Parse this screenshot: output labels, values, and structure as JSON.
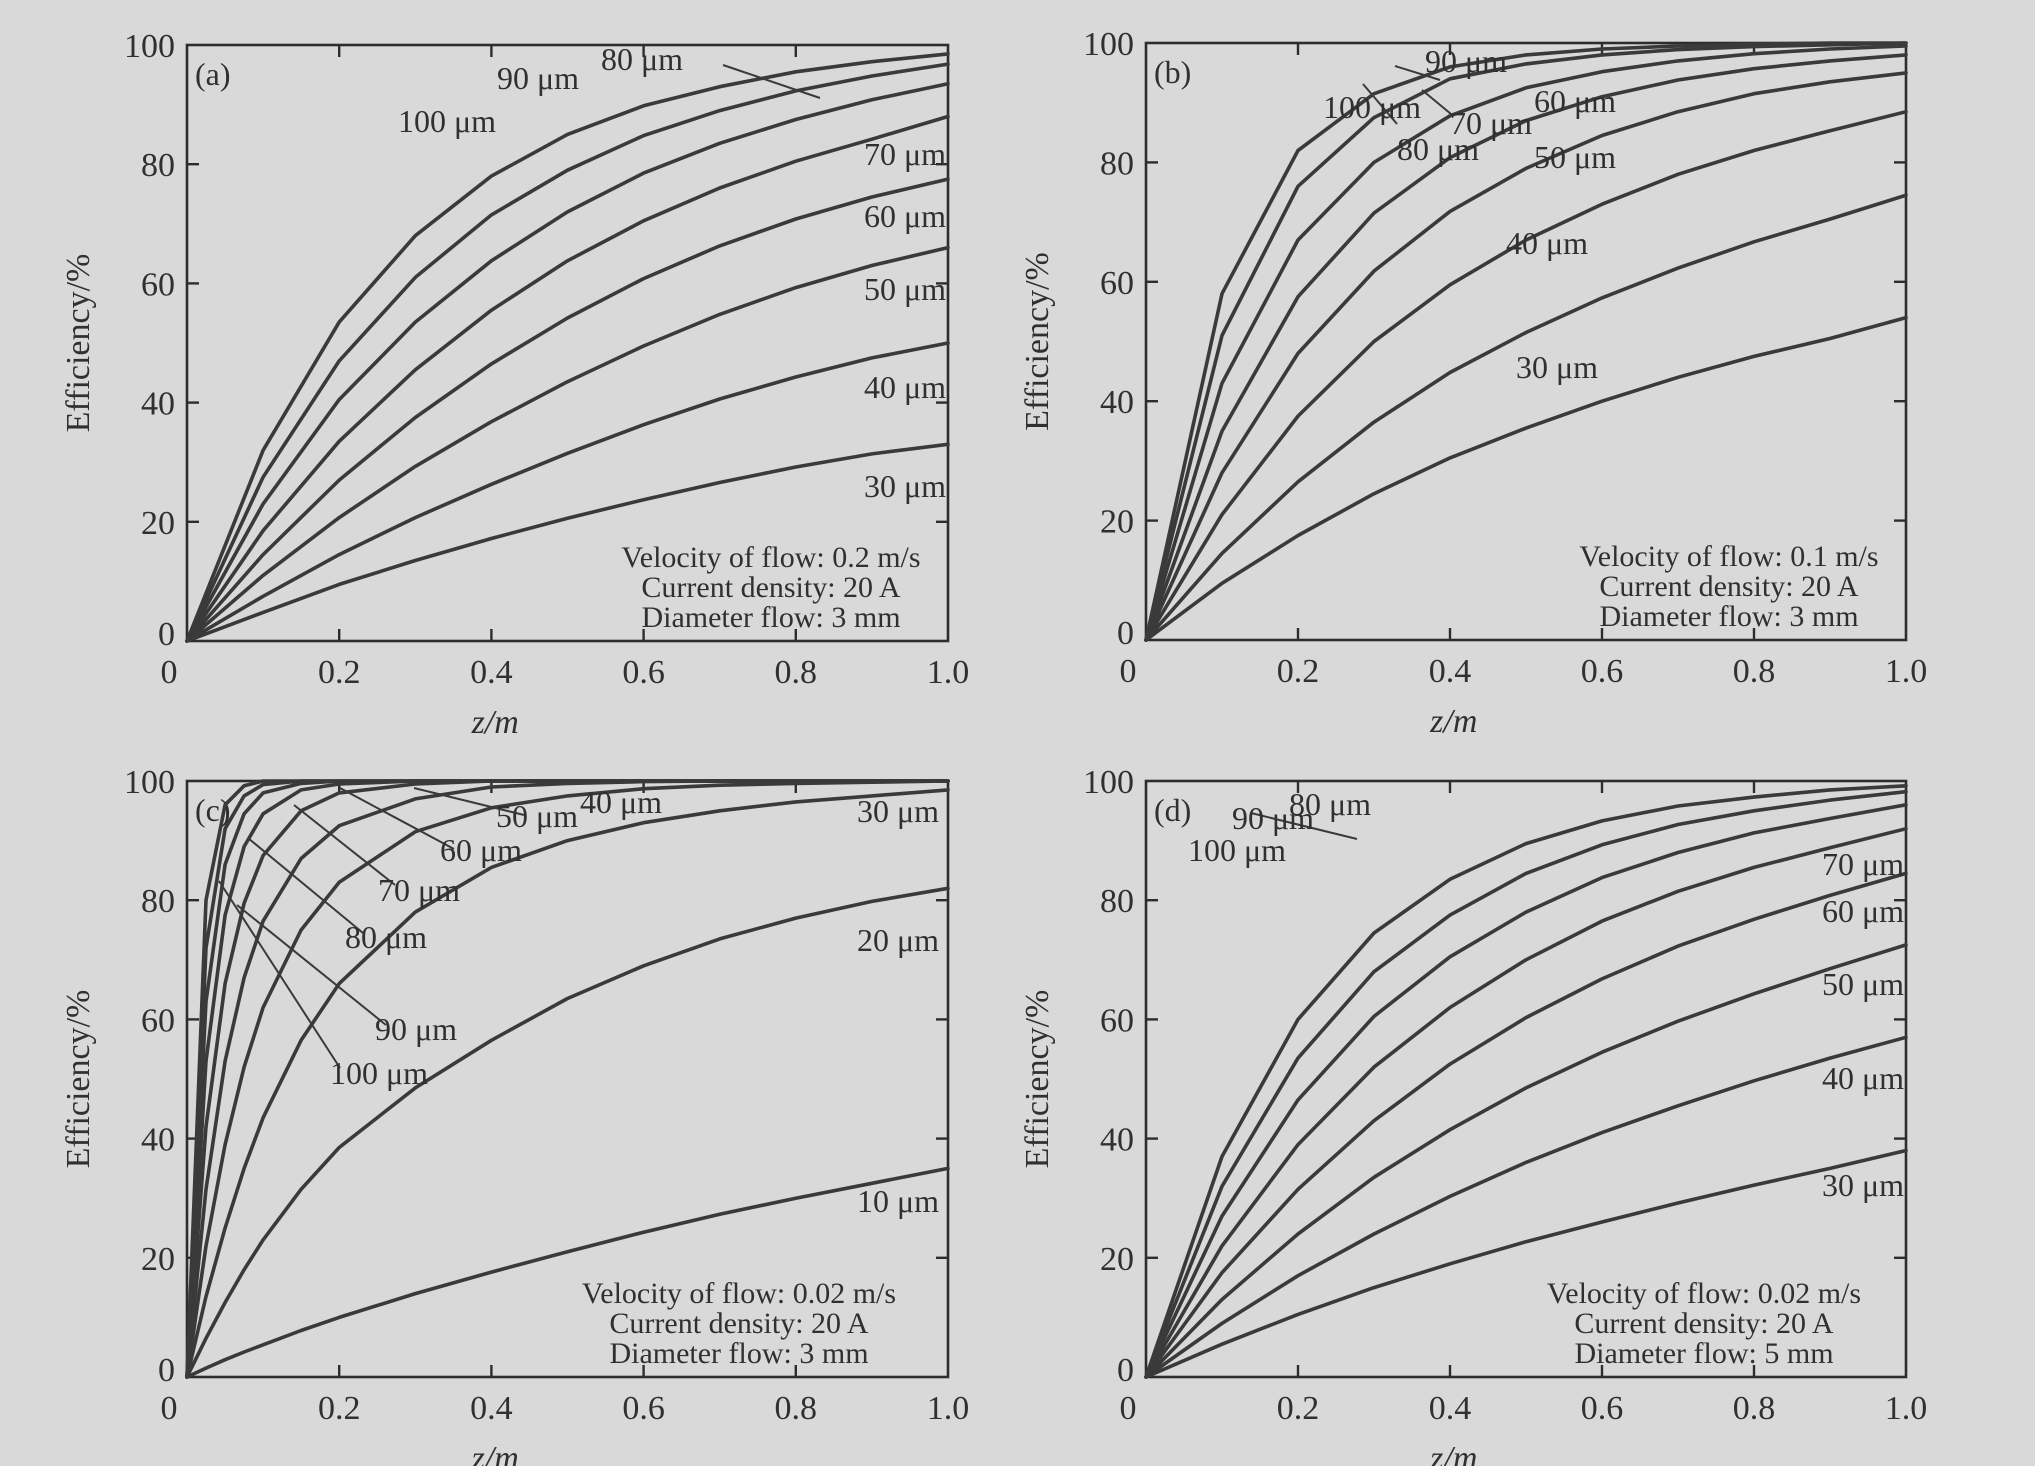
{
  "figure": {
    "background": "#d9d9d9",
    "line_color": "#3a3a3a"
  },
  "chart_data": [
    {
      "type": "line",
      "panel_label": "(a)",
      "xlabel": "z/m",
      "ylabel": "Efficiency/%",
      "xlim": [
        0,
        1.0
      ],
      "ylim": [
        0,
        100
      ],
      "xticks": [
        "0",
        "0.2",
        "0.4",
        "0.6",
        "0.8",
        "1.0"
      ],
      "yticks": [
        "0",
        "20",
        "40",
        "60",
        "80",
        "100"
      ],
      "conditions": [
        "Velocity of flow: 0.2 m/s",
        "Current density: 20 A",
        "Diameter flow: 3 mm"
      ],
      "x": [
        0,
        0.1,
        0.2,
        0.3,
        0.4,
        0.5,
        0.6,
        0.7,
        0.8,
        0.9,
        1.0
      ],
      "series": [
        {
          "name": "30 μm",
          "values": [
            0,
            4.8,
            9.5,
            13.5,
            17.2,
            20.6,
            23.7,
            26.6,
            29.2,
            31.4,
            33.0
          ]
        },
        {
          "name": "40 μm",
          "values": [
            0,
            7.5,
            14.5,
            20.7,
            26.3,
            31.5,
            36.3,
            40.6,
            44.3,
            47.5,
            50.0
          ]
        },
        {
          "name": "50 μm",
          "values": [
            0,
            11.0,
            20.7,
            29.3,
            36.8,
            43.5,
            49.5,
            54.8,
            59.3,
            63.0,
            66.0
          ]
        },
        {
          "name": "60 μm",
          "values": [
            0,
            14.5,
            27.0,
            37.5,
            46.5,
            54.2,
            60.8,
            66.3,
            70.8,
            74.5,
            77.5
          ]
        },
        {
          "name": "70 μm",
          "values": [
            0,
            18.5,
            33.5,
            45.5,
            55.5,
            63.8,
            70.5,
            76.0,
            80.5,
            84.2,
            88.0
          ]
        },
        {
          "name": "80 μm",
          "values": [
            0,
            23.0,
            40.5,
            53.5,
            63.8,
            72.0,
            78.5,
            83.5,
            87.5,
            90.8,
            93.5
          ]
        },
        {
          "name": "90 μm",
          "values": [
            0,
            27.5,
            47.0,
            61.0,
            71.5,
            79.0,
            84.8,
            89.0,
            92.3,
            94.8,
            96.8
          ]
        },
        {
          "name": "100 μm",
          "values": [
            0,
            32.0,
            53.5,
            68.0,
            78.0,
            85.0,
            89.8,
            93.0,
            95.5,
            97.2,
            98.5
          ]
        }
      ]
    },
    {
      "type": "line",
      "panel_label": "(b)",
      "xlabel": "z/m",
      "ylabel": "Efficiency/%",
      "xlim": [
        0,
        1.0
      ],
      "ylim": [
        0,
        100
      ],
      "xticks": [
        "0",
        "0.2",
        "0.4",
        "0.6",
        "0.8",
        "1.0"
      ],
      "yticks": [
        "0",
        "20",
        "40",
        "60",
        "80",
        "100"
      ],
      "conditions": [
        "Velocity of flow: 0.1 m/s",
        "Current density: 20 A",
        "Diameter flow: 3 mm"
      ],
      "x": [
        0,
        0.1,
        0.2,
        0.3,
        0.4,
        0.5,
        0.6,
        0.7,
        0.8,
        0.9,
        1.0
      ],
      "series": [
        {
          "name": "30 μm",
          "values": [
            0,
            9.5,
            17.5,
            24.5,
            30.5,
            35.5,
            40.0,
            44.0,
            47.5,
            50.5,
            54.0
          ]
        },
        {
          "name": "40 μm",
          "values": [
            0,
            14.5,
            26.5,
            36.5,
            44.8,
            51.5,
            57.3,
            62.3,
            66.7,
            70.5,
            74.5
          ]
        },
        {
          "name": "50 μm",
          "values": [
            0,
            21.0,
            37.5,
            50.0,
            59.5,
            67.0,
            73.0,
            78.0,
            82.0,
            85.3,
            88.5
          ]
        },
        {
          "name": "60 μm",
          "values": [
            0,
            28.0,
            48.0,
            61.8,
            71.8,
            79.0,
            84.5,
            88.5,
            91.5,
            93.5,
            95.0
          ]
        },
        {
          "name": "70 μm",
          "values": [
            0,
            35.0,
            57.5,
            71.5,
            80.8,
            87.0,
            91.0,
            93.8,
            95.7,
            97.0,
            98.0
          ]
        },
        {
          "name": "80 μm",
          "values": [
            0,
            43.0,
            67.0,
            80.0,
            87.8,
            92.5,
            95.2,
            97.0,
            98.2,
            99.0,
            99.5
          ]
        },
        {
          "name": "90 μm",
          "values": [
            0,
            51.0,
            76.0,
            87.5,
            94.0,
            96.5,
            98.0,
            98.9,
            99.4,
            99.7,
            100
          ]
        },
        {
          "name": "100 μm",
          "values": [
            0,
            58.0,
            82.0,
            91.5,
            96.0,
            98.0,
            99.0,
            99.5,
            99.8,
            100,
            100
          ]
        }
      ]
    },
    {
      "type": "line",
      "panel_label": "(c)",
      "xlabel": "z/m",
      "ylabel": "Efficiency/%",
      "xlim": [
        0,
        1.0
      ],
      "ylim": [
        0,
        100
      ],
      "xticks": [
        "0",
        "0.2",
        "0.4",
        "0.6",
        "0.8",
        "1.0"
      ],
      "yticks": [
        "0",
        "20",
        "40",
        "60",
        "80",
        "100"
      ],
      "conditions": [
        "Velocity of flow: 0.02 m/s",
        "Current density: 20 A",
        "Diameter flow: 3 mm"
      ],
      "x": [
        0,
        0.025,
        0.05,
        0.075,
        0.1,
        0.15,
        0.2,
        0.3,
        0.4,
        0.5,
        0.6,
        0.7,
        0.8,
        0.9,
        1.0
      ],
      "series": [
        {
          "name": "10 μm",
          "values": [
            0,
            1.5,
            2.9,
            4.2,
            5.4,
            7.8,
            10.0,
            14.0,
            17.6,
            21.0,
            24.3,
            27.3,
            30.0,
            32.5,
            35.0
          ]
        },
        {
          "name": "20 μm",
          "values": [
            0,
            6.5,
            12.5,
            18.0,
            23.0,
            31.5,
            38.5,
            48.5,
            56.5,
            63.5,
            69.0,
            73.5,
            77.0,
            79.8,
            82.0
          ]
        },
        {
          "name": "30 μm",
          "values": [
            0,
            13.5,
            25.0,
            35.0,
            43.5,
            56.5,
            66.0,
            78.0,
            85.5,
            90.0,
            93.0,
            95.0,
            96.5,
            97.5,
            98.5
          ]
        },
        {
          "name": "40 μm",
          "values": [
            0,
            22.0,
            39.0,
            52.0,
            62.0,
            75.0,
            83.0,
            91.5,
            95.5,
            97.5,
            98.7,
            99.3,
            99.6,
            99.8,
            100
          ]
        },
        {
          "name": "50 μm",
          "values": [
            0,
            31.5,
            53.0,
            67.0,
            76.5,
            87.0,
            92.5,
            97.0,
            99.0,
            99.6,
            99.9,
            100,
            100,
            100,
            100
          ]
        },
        {
          "name": "60 μm",
          "values": [
            0,
            42.0,
            66.0,
            79.5,
            87.5,
            95.0,
            98.0,
            99.5,
            100,
            100,
            100,
            100,
            100,
            100,
            100
          ]
        },
        {
          "name": "70 μm",
          "values": [
            0,
            53.0,
            77.5,
            89.0,
            94.5,
            98.5,
            99.5,
            100,
            100,
            100,
            100,
            100,
            100,
            100,
            100
          ]
        },
        {
          "name": "80 μm",
          "values": [
            0,
            63.0,
            86.0,
            94.5,
            98.0,
            99.6,
            100,
            100,
            100,
            100,
            100,
            100,
            100,
            100,
            100
          ]
        },
        {
          "name": "90 μm",
          "values": [
            0,
            72.0,
            92.0,
            97.5,
            99.4,
            100,
            100,
            100,
            100,
            100,
            100,
            100,
            100,
            100,
            100
          ]
        },
        {
          "name": "100 μm",
          "values": [
            0,
            80.0,
            96.0,
            99.2,
            100,
            100,
            100,
            100,
            100,
            100,
            100,
            100,
            100,
            100,
            100
          ]
        }
      ]
    },
    {
      "type": "line",
      "panel_label": "(d)",
      "xlabel": "z/m",
      "ylabel": "Efficiency/%",
      "xlim": [
        0,
        1.0
      ],
      "ylim": [
        0,
        100
      ],
      "xticks": [
        "0",
        "0.2",
        "0.4",
        "0.6",
        "0.8",
        "1.0"
      ],
      "yticks": [
        "0",
        "20",
        "40",
        "60",
        "80",
        "100"
      ],
      "conditions": [
        "Velocity of flow: 0.02 m/s",
        "Current density: 20 A",
        "Diameter flow: 5 mm"
      ],
      "x": [
        0,
        0.1,
        0.2,
        0.3,
        0.4,
        0.5,
        0.6,
        0.7,
        0.8,
        0.9,
        1.0
      ],
      "series": [
        {
          "name": "30 μm",
          "values": [
            0,
            5.5,
            10.5,
            15.0,
            19.0,
            22.7,
            26.0,
            29.2,
            32.2,
            35.0,
            38.0
          ]
        },
        {
          "name": "40 μm",
          "values": [
            0,
            9.0,
            17.0,
            24.0,
            30.3,
            36.0,
            41.0,
            45.5,
            49.7,
            53.5,
            57.0
          ]
        },
        {
          "name": "50 μm",
          "values": [
            0,
            13.0,
            24.0,
            33.5,
            41.5,
            48.5,
            54.5,
            59.7,
            64.3,
            68.5,
            72.5
          ]
        },
        {
          "name": "60 μm",
          "values": [
            0,
            17.5,
            31.5,
            43.0,
            52.5,
            60.3,
            66.8,
            72.3,
            76.8,
            80.8,
            84.5
          ]
        },
        {
          "name": "70 μm",
          "values": [
            0,
            22.0,
            39.0,
            52.0,
            62.0,
            70.0,
            76.5,
            81.5,
            85.5,
            88.8,
            92.0
          ]
        },
        {
          "name": "80 μm",
          "values": [
            0,
            27.0,
            46.5,
            60.5,
            70.5,
            78.0,
            83.8,
            88.0,
            91.3,
            93.7,
            96.0
          ]
        },
        {
          "name": "90 μm",
          "values": [
            0,
            32.0,
            53.5,
            68.0,
            77.5,
            84.5,
            89.3,
            92.7,
            95.0,
            96.8,
            98.2
          ]
        },
        {
          "name": "100 μm",
          "values": [
            0,
            37.0,
            60.0,
            74.5,
            83.5,
            89.5,
            93.3,
            95.8,
            97.3,
            98.5,
            99.2
          ]
        }
      ]
    }
  ]
}
